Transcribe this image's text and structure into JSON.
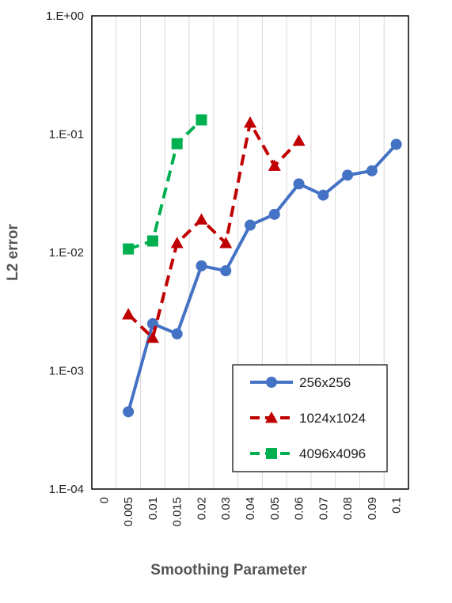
{
  "chart_data": {
    "type": "line",
    "title": "",
    "xlabel": "Smoothing Parameter",
    "ylabel": "L2 error",
    "y_scale": "log",
    "ylim": [
      0.0001,
      1
    ],
    "y_tick_labels": [
      "1.E+00",
      "1.E-01",
      "1.E-02",
      "1.E-03",
      "1.E-04"
    ],
    "y_tick_values": [
      1,
      0.1,
      0.01,
      0.001,
      0.0001
    ],
    "categories": [
      "0",
      "0.005",
      "0.01",
      "0.015",
      "0.02",
      "0.03",
      "0.04",
      "0.05",
      "0.06",
      "0.07",
      "0.08",
      "0.09",
      "0.1"
    ],
    "grid": "vertical",
    "legend_position": "bottom-right",
    "series": [
      {
        "name": "256x256",
        "color": "#4472C4",
        "marker": "circle",
        "dash": "solid",
        "values": [
          null,
          0.00045,
          0.0025,
          0.00205,
          0.0077,
          0.007,
          0.017,
          0.021,
          0.038,
          0.0305,
          0.045,
          0.049,
          0.082
        ]
      },
      {
        "name": "1024x1024",
        "color": "#C00000",
        "marker": "triangle",
        "dash": "dashed",
        "values": [
          null,
          0.003,
          0.0019,
          0.012,
          0.019,
          0.012,
          0.125,
          0.054,
          0.088,
          null,
          null,
          null,
          null
        ]
      },
      {
        "name": "4096x4096",
        "color": "#00B050",
        "marker": "square",
        "dash": "dashed",
        "values": [
          null,
          0.0107,
          0.0125,
          0.083,
          0.132,
          null,
          null,
          null,
          null,
          null,
          null,
          null,
          null
        ]
      }
    ]
  }
}
